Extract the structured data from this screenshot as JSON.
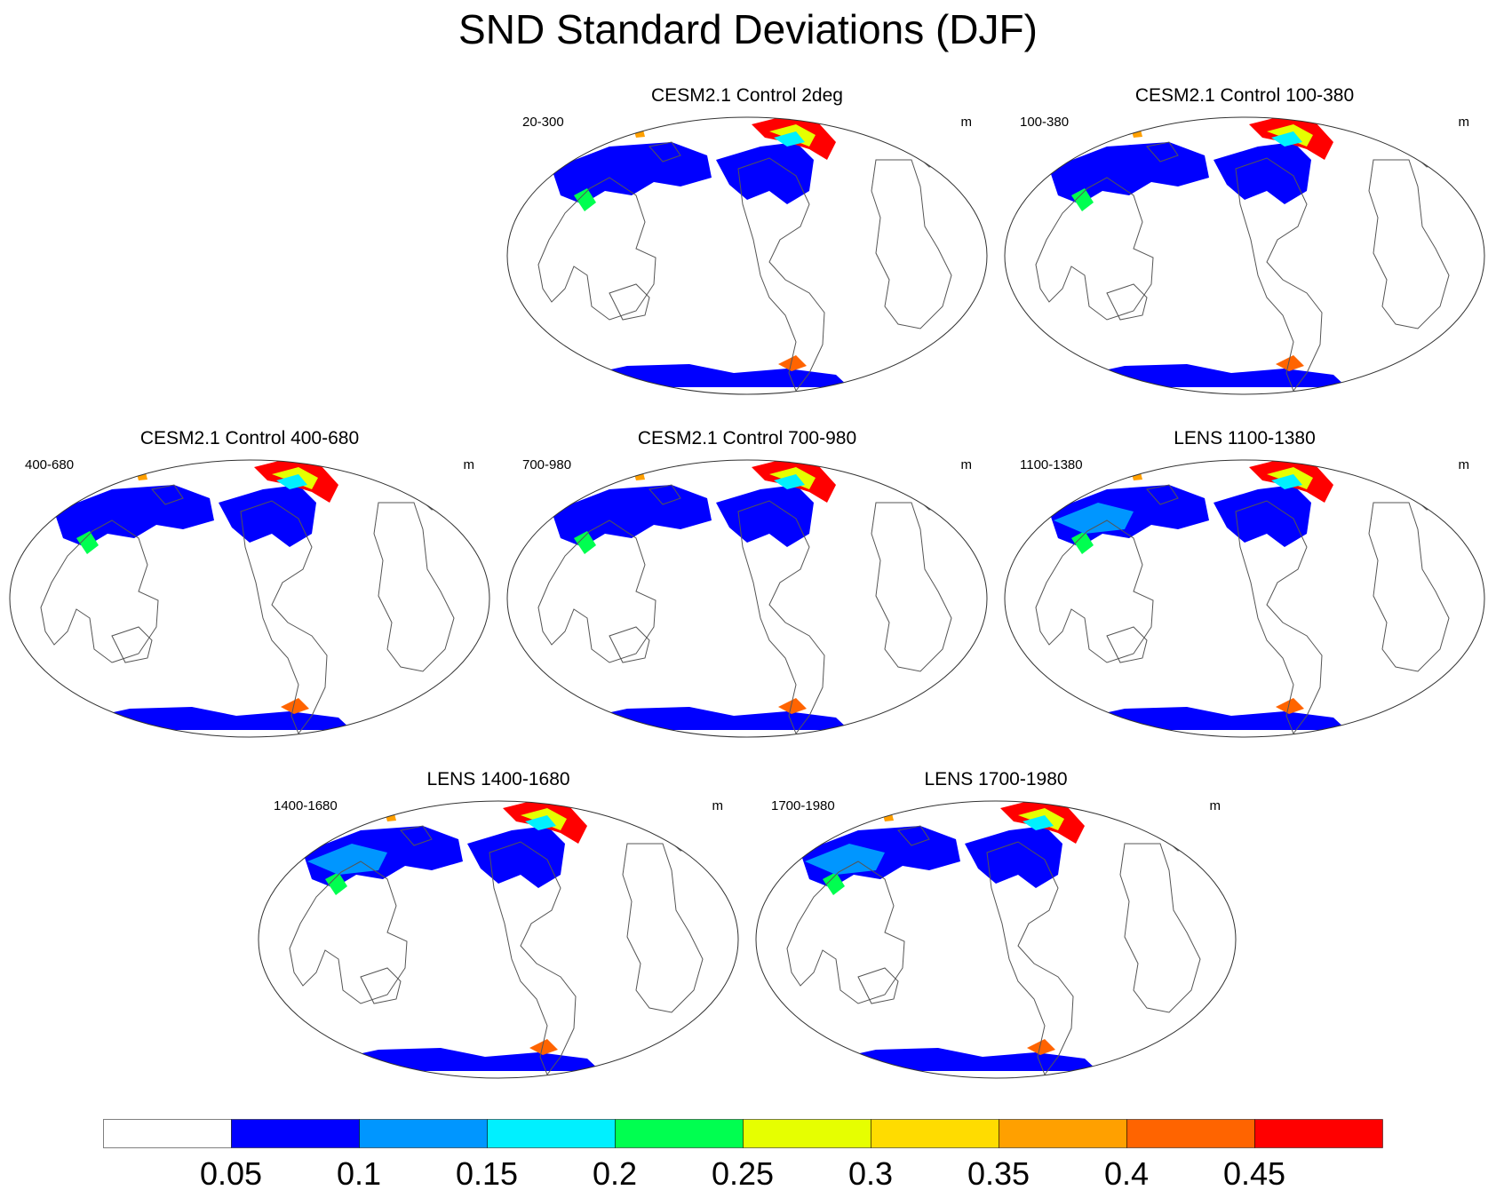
{
  "title": "SND Standard Deviations (DJF)",
  "panels": [
    {
      "title": "CESM2.1 Control 2deg",
      "left": "20-300",
      "right": "m"
    },
    {
      "title": "CESM2.1 Control 100-380",
      "left": "100-380",
      "right": "m"
    },
    {
      "title": "CESM2.1 Control 400-680",
      "left": "400-680",
      "right": "m"
    },
    {
      "title": "CESM2.1 Control 700-980",
      "left": "700-980",
      "right": "m"
    },
    {
      "title": "LENS 1100-1380",
      "left": "1100-1380",
      "right": "m"
    },
    {
      "title": "LENS 1400-1680",
      "left": "1400-1680",
      "right": "m"
    },
    {
      "title": "LENS 1700-1980",
      "left": "1700-1980",
      "right": "m"
    }
  ],
  "colorbar": {
    "labels": [
      "0.05",
      "0.1",
      "0.15",
      "0.2",
      "0.25",
      "0.3",
      "0.35",
      "0.4",
      "0.45"
    ],
    "colors": [
      "#ffffff",
      "#0000ff",
      "#0096ff",
      "#00f0ff",
      "#00ff50",
      "#e6ff00",
      "#ffdc00",
      "#ffa000",
      "#ff6400",
      "#ff0000"
    ]
  }
}
